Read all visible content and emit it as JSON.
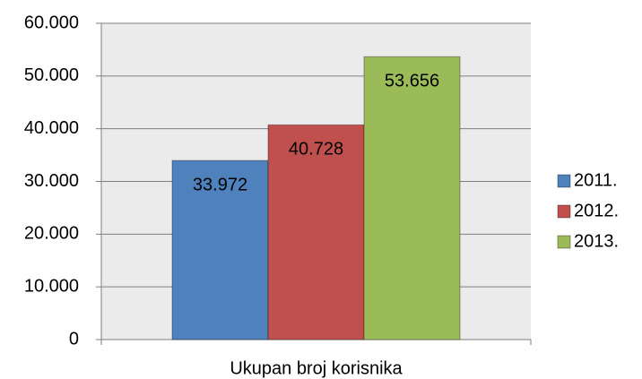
{
  "chart_data": {
    "type": "bar",
    "categories": [
      "Ukupan broj korisnika"
    ],
    "series": [
      {
        "name": "2011.",
        "color": "#4f81bd",
        "values": [
          33972
        ],
        "value_labels": [
          "33.972"
        ]
      },
      {
        "name": "2012.",
        "color": "#c0504d",
        "values": [
          40728
        ],
        "value_labels": [
          "40.728"
        ]
      },
      {
        "name": "2013.",
        "color": "#9bbb59",
        "values": [
          53656
        ],
        "value_labels": [
          "53.656"
        ]
      }
    ],
    "ylim": [
      0,
      60000
    ],
    "yticks": [
      0,
      {
        "value": 10000,
        "label": "10.000"
      },
      {
        "value": 20000,
        "label": "20.000"
      },
      {
        "value": 30000,
        "label": "30.000"
      },
      {
        "value": 40000,
        "label": "40.000"
      },
      {
        "value": 50000,
        "label": "50.000"
      },
      {
        "value": 60000,
        "label": "60.000"
      }
    ],
    "grid": true,
    "legend": "right"
  }
}
